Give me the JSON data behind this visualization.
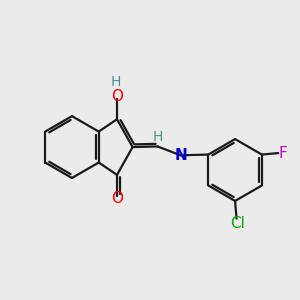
{
  "bg_color": "#ebebeb",
  "bond_color": "#1a1a1a",
  "atom_colors": {
    "O": "#ff0000",
    "N": "#0000cc",
    "Cl": "#00aa00",
    "F": "#cc00cc",
    "H_label": "#4a9090"
  },
  "figsize": [
    3.0,
    3.0
  ],
  "dpi": 100
}
